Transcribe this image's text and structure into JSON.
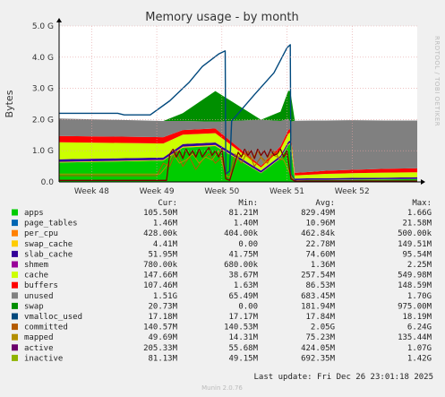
{
  "chart_data": {
    "type": "area",
    "title": "Memory usage - by month",
    "ylabel": "Bytes",
    "side_label": "RRDTOOL / TOBI OETIKER",
    "ylim": [
      0,
      5
    ],
    "y_ticks": [
      {
        "v": 0,
        "label": "0.0"
      },
      {
        "v": 1,
        "label": "1.0 G"
      },
      {
        "v": 2,
        "label": "2.0 G"
      },
      {
        "v": 3,
        "label": "3.0 G"
      },
      {
        "v": 4,
        "label": "4.0 G"
      },
      {
        "v": 5,
        "label": "5.0 G"
      }
    ],
    "x_ticks": [
      {
        "t": 0.5,
        "label": "Week 48"
      },
      {
        "t": 1.5,
        "label": "Week 49"
      },
      {
        "t": 2.5,
        "label": "Week 50"
      },
      {
        "t": 3.5,
        "label": "Week 51"
      },
      {
        "t": 4.5,
        "label": "Week 52"
      }
    ],
    "xlim": [
      0,
      5.5
    ],
    "x": [
      0,
      1.6,
      1.9,
      2.4,
      3.1,
      3.4,
      3.52,
      3.55,
      3.62,
      3.9,
      4.1,
      4.5,
      5.0,
      5.5
    ],
    "stack_order": [
      "apps",
      "page_tables",
      "per_cpu",
      "swap_cache",
      "slab_cache",
      "shmem",
      "cache",
      "buffers",
      "unused",
      "swap"
    ],
    "series": [
      {
        "name": "apps",
        "color": "#00cc00",
        "values": [
          0.62,
          0.68,
          1.1,
          1.15,
          0.28,
          0.75,
          1.18,
          1.22,
          0.05,
          0.06,
          0.06,
          0.07,
          0.08,
          0.09
        ]
      },
      {
        "name": "page_tables",
        "color": "#0066b3",
        "values": [
          0.002,
          0.002,
          0.002,
          0.002,
          0.002,
          0.002,
          0.002,
          0.002,
          0.002,
          0.002,
          0.002,
          0.002,
          0.002,
          0.002
        ]
      },
      {
        "name": "per_cpu",
        "color": "#ff8000",
        "values": [
          0.001,
          0.001,
          0.001,
          0.001,
          0.001,
          0.001,
          0.001,
          0.001,
          0.001,
          0.001,
          0.001,
          0.001,
          0.001,
          0.001
        ]
      },
      {
        "name": "swap_cache",
        "color": "#ffcc00",
        "values": [
          0.02,
          0.02,
          0.03,
          0.03,
          0.01,
          0.02,
          0.03,
          0.03,
          0.005,
          0.005,
          0.005,
          0.005,
          0.005,
          0.005
        ]
      },
      {
        "name": "slab_cache",
        "color": "#330099",
        "values": [
          0.08,
          0.08,
          0.08,
          0.08,
          0.07,
          0.07,
          0.08,
          0.08,
          0.05,
          0.05,
          0.05,
          0.05,
          0.05,
          0.05
        ]
      },
      {
        "name": "shmem",
        "color": "#990099",
        "values": [
          0.001,
          0.001,
          0.001,
          0.001,
          0.001,
          0.001,
          0.001,
          0.001,
          0.001,
          0.001,
          0.001,
          0.001,
          0.001,
          0.001
        ]
      },
      {
        "name": "cache",
        "color": "#ccff00",
        "values": [
          0.55,
          0.45,
          0.3,
          0.3,
          0.1,
          0.2,
          0.25,
          0.25,
          0.1,
          0.12,
          0.14,
          0.15,
          0.16,
          0.16
        ]
      },
      {
        "name": "buffers",
        "color": "#ff0000",
        "values": [
          0.2,
          0.2,
          0.15,
          0.15,
          0.05,
          0.1,
          0.12,
          0.12,
          0.08,
          0.09,
          0.1,
          0.11,
          0.12,
          0.13
        ]
      },
      {
        "name": "unused",
        "color": "#808080",
        "values": [
          0.56,
          0.52,
          0.29,
          0.22,
          1.48,
          0.81,
          0.36,
          0.23,
          1.67,
          1.64,
          1.61,
          1.59,
          1.55,
          1.53
        ]
      },
      {
        "name": "swap",
        "color": "#008f00",
        "values": [
          0.0,
          0.0,
          0.25,
          0.98,
          0.0,
          0.3,
          0.9,
          0.98,
          0.0,
          0.0,
          0.0,
          0.0,
          0.0,
          0.0
        ]
      }
    ],
    "lines": [
      {
        "name": "committed",
        "color": "#00487d",
        "width": 1.4,
        "x": [
          0,
          0.9,
          1.0,
          1.4,
          1.7,
          2.0,
          2.2,
          2.45,
          2.55,
          2.56,
          2.62,
          2.65,
          3.0,
          3.3,
          3.45,
          3.5,
          3.55,
          3.56,
          3.62,
          3.65,
          5.5
        ],
        "values": [
          2.2,
          2.2,
          2.15,
          2.15,
          2.6,
          3.2,
          3.7,
          4.1,
          4.2,
          0.25,
          0.35,
          1.95,
          2.8,
          3.5,
          4.1,
          4.3,
          4.4,
          0.25,
          0.05,
          0.02,
          0.02
        ]
      },
      {
        "name": "active",
        "color": "#b35a00",
        "width": 1.0,
        "x": [
          0,
          1.5,
          1.6,
          1.7,
          1.8,
          1.9,
          2.0,
          2.1,
          2.2,
          2.3,
          2.4,
          2.5,
          2.56,
          2.62,
          2.7,
          2.8,
          2.9,
          3.0,
          3.1,
          3.2,
          3.3,
          3.4,
          3.5,
          3.56,
          3.62,
          5.5
        ],
        "values": [
          0.2,
          0.2,
          0.6,
          0.5,
          1.0,
          0.5,
          0.8,
          0.4,
          0.7,
          0.9,
          0.6,
          0.8,
          0.2,
          0.15,
          0.9,
          0.6,
          1.0,
          0.5,
          0.8,
          0.6,
          1.0,
          0.7,
          0.9,
          0.2,
          0.03,
          0.03
        ]
      },
      {
        "name": "inactive",
        "color": "#b38f00",
        "width": 1.0,
        "x": [
          0,
          1.55,
          1.65,
          1.75,
          1.85,
          1.95,
          2.05,
          2.15,
          2.25,
          2.35,
          2.45,
          2.56,
          2.62,
          2.75,
          2.85,
          2.95,
          3.05,
          3.15,
          3.25,
          3.35,
          3.45,
          3.56,
          3.62,
          5.5
        ],
        "values": [
          0.25,
          0.25,
          0.5,
          0.9,
          0.6,
          0.7,
          0.9,
          0.6,
          0.8,
          0.7,
          1.0,
          0.2,
          0.15,
          0.8,
          0.9,
          0.7,
          1.0,
          0.6,
          0.9,
          0.8,
          0.7,
          0.2,
          0.03,
          0.03
        ]
      },
      {
        "name": "mapped",
        "color": "#7d0000",
        "width": 1.3,
        "x": [
          0,
          1.65,
          1.7,
          1.75,
          1.8,
          1.85,
          1.9,
          1.95,
          2.0,
          2.05,
          2.1,
          2.15,
          2.2,
          2.25,
          2.3,
          2.35,
          2.4,
          2.45,
          2.5,
          2.56,
          2.62,
          2.75,
          2.8,
          2.85,
          2.9,
          2.95,
          3.0,
          3.05,
          3.1,
          3.15,
          3.2,
          3.25,
          3.3,
          3.35,
          3.4,
          3.45,
          3.5,
          3.56,
          3.62,
          5.5
        ],
        "values": [
          0.05,
          0.05,
          0.9,
          1.05,
          0.8,
          1.0,
          0.75,
          1.05,
          0.85,
          1.0,
          0.8,
          1.05,
          0.8,
          0.95,
          1.1,
          0.85,
          1.0,
          0.8,
          1.05,
          0.1,
          0.05,
          0.95,
          0.8,
          1.05,
          0.85,
          1.0,
          0.75,
          1.05,
          0.85,
          1.0,
          0.8,
          1.05,
          0.85,
          0.9,
          1.05,
          0.8,
          1.0,
          0.1,
          0.03,
          0.03
        ]
      }
    ],
    "legend_headers": [
      "Cur:",
      "Min:",
      "Avg:",
      "Max:"
    ],
    "legend": [
      {
        "name": "apps",
        "color": "#00cc00",
        "cur": "105.50M",
        "min": "81.21M",
        "avg": "829.49M",
        "max": "1.66G"
      },
      {
        "name": "page_tables",
        "color": "#0066b3",
        "cur": "1.46M",
        "min": "1.40M",
        "avg": "10.96M",
        "max": "21.58M"
      },
      {
        "name": "per_cpu",
        "color": "#ff8000",
        "cur": "428.00k",
        "min": "404.00k",
        "avg": "462.84k",
        "max": "500.00k"
      },
      {
        "name": "swap_cache",
        "color": "#ffcc00",
        "cur": "4.41M",
        "min": "0.00",
        "avg": "22.78M",
        "max": "149.51M"
      },
      {
        "name": "slab_cache",
        "color": "#330099",
        "cur": "51.95M",
        "min": "41.75M",
        "avg": "74.60M",
        "max": "95.54M"
      },
      {
        "name": "shmem",
        "color": "#990099",
        "cur": "780.00k",
        "min": "680.00k",
        "avg": "1.36M",
        "max": "2.25M"
      },
      {
        "name": "cache",
        "color": "#ccff00",
        "cur": "147.66M",
        "min": "38.67M",
        "avg": "257.54M",
        "max": "549.98M"
      },
      {
        "name": "buffers",
        "color": "#ff0000",
        "cur": "107.46M",
        "min": "1.63M",
        "avg": "86.53M",
        "max": "148.59M"
      },
      {
        "name": "unused",
        "color": "#808080",
        "cur": "1.51G",
        "min": "65.49M",
        "avg": "683.45M",
        "max": "1.70G"
      },
      {
        "name": "swap",
        "color": "#008f00",
        "cur": "20.73M",
        "min": "0.00",
        "avg": "181.94M",
        "max": "975.00M"
      },
      {
        "name": "vmalloc_used",
        "color": "#00487d",
        "cur": "17.18M",
        "min": "17.17M",
        "avg": "17.84M",
        "max": "18.19M"
      },
      {
        "name": "committed",
        "color": "#b35a00",
        "cur": "140.57M",
        "min": "140.53M",
        "avg": "2.05G",
        "max": "6.24G"
      },
      {
        "name": "mapped",
        "color": "#b38f00",
        "cur": "49.69M",
        "min": "14.31M",
        "avg": "75.23M",
        "max": "135.44M"
      },
      {
        "name": "active",
        "color": "#6b006b",
        "cur": "205.33M",
        "min": "55.68M",
        "avg": "424.05M",
        "max": "1.07G"
      },
      {
        "name": "inactive",
        "color": "#8fb300",
        "cur": "81.13M",
        "min": "49.15M",
        "avg": "692.35M",
        "max": "1.42G"
      }
    ],
    "last_update": "Last update:  Fri Dec 26 23:01:18 2025",
    "footer": "Munin 2.0.76",
    "grid": true
  }
}
